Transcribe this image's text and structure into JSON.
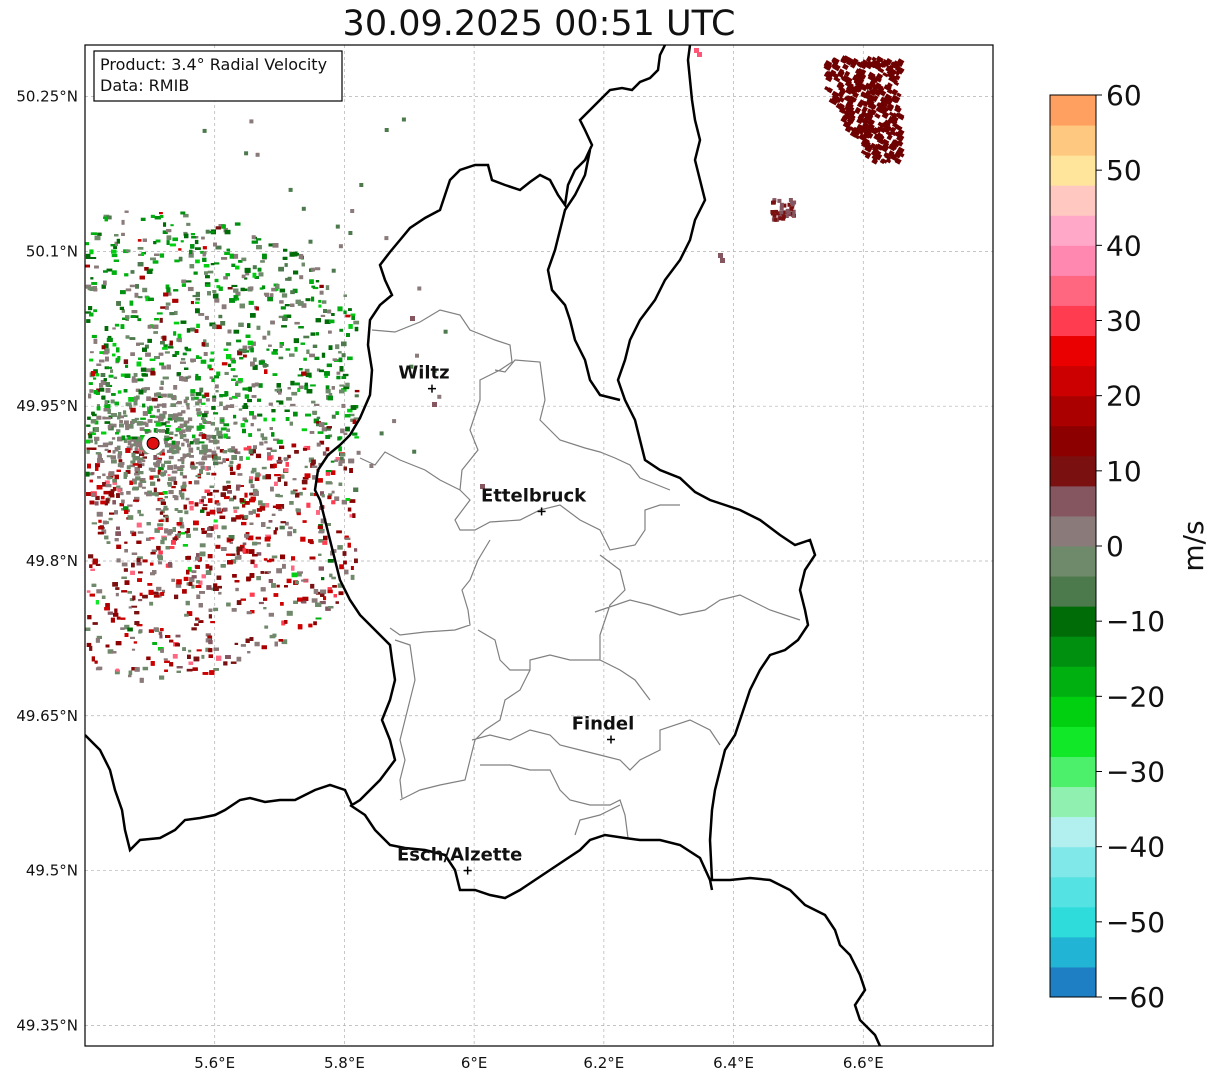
{
  "title": "30.09.2025 00:51 UTC",
  "info": {
    "product": "Product: 3.4° Radial Velocity",
    "data": "Data: RMIB"
  },
  "map": {
    "lon_range": [
      5.4,
      6.8
    ],
    "lat_range": [
      49.33,
      50.3
    ],
    "lat_ticks": [
      {
        "value": 50.25,
        "label": "50.25°N"
      },
      {
        "value": 50.1,
        "label": "50.1°N"
      },
      {
        "value": 49.95,
        "label": "49.95°N"
      },
      {
        "value": 49.8,
        "label": "49.8°N"
      },
      {
        "value": 49.65,
        "label": "49.65°N"
      },
      {
        "value": 49.5,
        "label": "49.5°N"
      },
      {
        "value": 49.35,
        "label": "49.35°N"
      }
    ],
    "lon_ticks": [
      {
        "value": 5.6,
        "label": "5.6°E"
      },
      {
        "value": 5.8,
        "label": "5.8°E"
      },
      {
        "value": 6.0,
        "label": "6°E"
      },
      {
        "value": 6.2,
        "label": "6.2°E"
      },
      {
        "value": 6.4,
        "label": "6.4°E"
      },
      {
        "value": 6.6,
        "label": "6.6°E"
      }
    ],
    "gridlines": true,
    "radar_site": {
      "lon": 5.505,
      "lat": 49.914
    },
    "cities": [
      {
        "name": "Wiltz",
        "lon": 5.935,
        "lat": 49.967
      },
      {
        "name": "Ettelbruck",
        "lon": 6.104,
        "lat": 49.848
      },
      {
        "name": "Findel",
        "lon": 6.211,
        "lat": 49.627
      },
      {
        "name": "Esch/Alzette",
        "lon": 5.99,
        "lat": 49.5
      }
    ]
  },
  "colorbar": {
    "unit": "m/s",
    "min": -60,
    "max": 60,
    "ticks": [
      {
        "value": 60,
        "label": "60"
      },
      {
        "value": 50,
        "label": "50"
      },
      {
        "value": 40,
        "label": "40"
      },
      {
        "value": 30,
        "label": "30"
      },
      {
        "value": 20,
        "label": "20"
      },
      {
        "value": 10,
        "label": "10"
      },
      {
        "value": 0,
        "label": "0"
      },
      {
        "value": -10,
        "label": "−10"
      },
      {
        "value": -20,
        "label": "−20"
      },
      {
        "value": -30,
        "label": "−30"
      },
      {
        "value": -40,
        "label": "−40"
      },
      {
        "value": -50,
        "label": "−50"
      },
      {
        "value": -60,
        "label": "−60"
      }
    ],
    "stops": [
      {
        "from": -60,
        "to": -56,
        "color": "#1f7fc4"
      },
      {
        "from": -56,
        "to": -52,
        "color": "#22b4d4"
      },
      {
        "from": -52,
        "to": -48,
        "color": "#2edcdc"
      },
      {
        "from": -48,
        "to": -44,
        "color": "#55e2e2"
      },
      {
        "from": -44,
        "to": -40,
        "color": "#80e8e8"
      },
      {
        "from": -40,
        "to": -36,
        "color": "#b2f0f0"
      },
      {
        "from": -36,
        "to": -32,
        "color": "#90f0b0"
      },
      {
        "from": -32,
        "to": -28,
        "color": "#4cf06a"
      },
      {
        "from": -28,
        "to": -24,
        "color": "#10e828"
      },
      {
        "from": -24,
        "to": -20,
        "color": "#00d010"
      },
      {
        "from": -20,
        "to": -16,
        "color": "#00b010"
      },
      {
        "from": -16,
        "to": -12,
        "color": "#009010"
      },
      {
        "from": -12,
        "to": -8,
        "color": "#006c08"
      },
      {
        "from": -8,
        "to": -4,
        "color": "#4c7a4c"
      },
      {
        "from": -4,
        "to": 0,
        "color": "#6e8a6a"
      },
      {
        "from": 0,
        "to": 4,
        "color": "#8a7a7a"
      },
      {
        "from": 4,
        "to": 8,
        "color": "#855560"
      },
      {
        "from": 8,
        "to": 12,
        "color": "#7a1010"
      },
      {
        "from": 12,
        "to": 16,
        "color": "#8c0000"
      },
      {
        "from": 16,
        "to": 20,
        "color": "#aa0000"
      },
      {
        "from": 20,
        "to": 24,
        "color": "#cc0000"
      },
      {
        "from": 24,
        "to": 28,
        "color": "#ea0000"
      },
      {
        "from": 28,
        "to": 32,
        "color": "#ff3c50"
      },
      {
        "from": 32,
        "to": 36,
        "color": "#ff6680"
      },
      {
        "from": 36,
        "to": 40,
        "color": "#ff88b0"
      },
      {
        "from": 40,
        "to": 44,
        "color": "#ffa8c8"
      },
      {
        "from": 44,
        "to": 48,
        "color": "#ffc8c0"
      },
      {
        "from": 48,
        "to": 52,
        "color": "#ffe49c"
      },
      {
        "from": 52,
        "to": 56,
        "color": "#ffc880"
      },
      {
        "from": 56,
        "to": 60,
        "color": "#ffa060"
      }
    ]
  },
  "colors": {
    "background": "#ffffff",
    "border": "#000000",
    "canton_lines": "#808080",
    "grid": "#b0b0b0",
    "radar_marker": "#e01010"
  }
}
